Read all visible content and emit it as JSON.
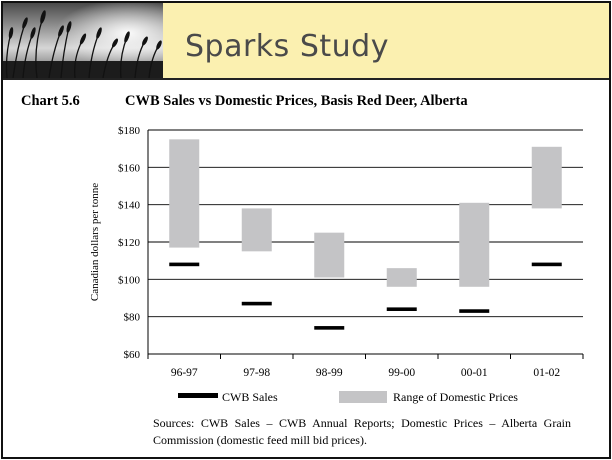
{
  "banner": {
    "title": "Sparks Study",
    "photo": "wheat-field-silhouette-photo"
  },
  "chart_heading": {
    "number": "Chart 5.6",
    "title": "CWB Sales vs Domestic Prices, Basis Red Deer, Alberta"
  },
  "chart_data": {
    "type": "floating-bar",
    "title": "CWB Sales vs Domestic Prices, Basis Red Deer, Alberta",
    "ylabel": "Canadian dollars per tonne",
    "xlabel": "",
    "ylim": [
      60,
      180
    ],
    "yticks": [
      60,
      80,
      100,
      120,
      140,
      160,
      180
    ],
    "ytick_labels": [
      "$60",
      "$80",
      "$100",
      "$120",
      "$140",
      "$160",
      "$180"
    ],
    "grid": "horizontal",
    "legend_position": "bottom",
    "categories": [
      "96-97",
      "97-98",
      "98-99",
      "99-00",
      "00-01",
      "01-02"
    ],
    "series": [
      {
        "name": "CWB Sales",
        "type": "marker",
        "color": "#000000",
        "values": [
          108,
          87,
          74,
          84,
          83,
          108
        ]
      },
      {
        "name": "Range of Domestic Prices",
        "type": "range",
        "color": "#c4c4c6",
        "low": [
          117,
          115,
          101,
          96,
          96,
          138
        ],
        "high": [
          175,
          138,
          125,
          106,
          141,
          171
        ]
      }
    ]
  },
  "sources_text": "Sources: CWB Sales – CWB Annual Reports; Domestic Prices – Alberta Grain Commission (domestic feed mill bid prices)."
}
